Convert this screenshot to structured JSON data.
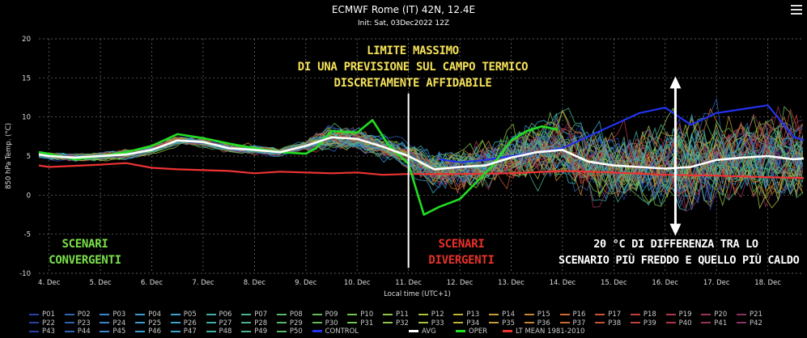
{
  "header": {
    "title": "ECMWF Rome (IT) 42N, 12.4E",
    "subtitle": "Init: Sat, 03Dec2022 12Z"
  },
  "annotations": {
    "limit": [
      "LIMITE MASSIMO",
      "DI UNA PREVISIONE SUL CAMPO TERMICO",
      "DISCRETAMENTE AFFIDABILE"
    ],
    "convergent": [
      "SCENARI",
      "CONVERGENTI"
    ],
    "divergent": [
      "SCENARI",
      "DIVERGENTI"
    ],
    "range": [
      "20 °C DI DIFFERENZA TRA LO",
      "SCENARIO PIÙ FREDDO E QUELLO PIÙ CALDO"
    ]
  },
  "colors": {
    "background": "#000000",
    "avg": "#ffffff",
    "oper": "#22dd22",
    "control": "#2233ee",
    "lt_mean": "#ee3333",
    "limit_text": "#f5e15a",
    "convergent_text": "#7be04a",
    "divergent_text": "#e8312a"
  },
  "chart_data": {
    "type": "line",
    "ylabel": "850 hPa Temp. (°C)",
    "xlabel": "Local time (UTC+1)",
    "ylim": [
      -10,
      20
    ],
    "yticks": [
      -10,
      -5,
      0,
      5,
      10,
      15,
      20
    ],
    "xlim": [
      3.8,
      18.7
    ],
    "categories": [
      "4. Dec",
      "5. Dec",
      "6. Dec",
      "7. Dec",
      "8. Dec",
      "9. Dec",
      "10. Dec",
      "11. Dec",
      "12. Dec",
      "13. Dec",
      "14. Dec",
      "15. Dec",
      "16. Dec",
      "17. Dec",
      "18. Dec"
    ],
    "tick_x": [
      4,
      5,
      6,
      7,
      8,
      9,
      10,
      11,
      12,
      13,
      14,
      15,
      16,
      17,
      18
    ],
    "grid": true,
    "limit_marker_x": 11,
    "range_arrow": {
      "x": 16.2,
      "from": -5,
      "to": 15
    },
    "series": [
      {
        "name": "AVG",
        "x": [
          3.8,
          4,
          4.5,
          5,
          5.5,
          6,
          6.5,
          7,
          7.5,
          8,
          8.5,
          9,
          9.5,
          10,
          10.5,
          11,
          11.5,
          12,
          12.5,
          13,
          13.5,
          14,
          14.5,
          15,
          15.5,
          16,
          16.5,
          17,
          17.5,
          18,
          18.5,
          18.7
        ],
        "values": [
          5.2,
          5.0,
          4.8,
          5.0,
          5.2,
          5.8,
          7.0,
          6.8,
          6.0,
          5.8,
          5.5,
          6.3,
          7.4,
          7.2,
          6.2,
          5.0,
          3.3,
          3.6,
          3.8,
          4.8,
          5.5,
          5.8,
          4.3,
          3.8,
          3.6,
          3.4,
          3.6,
          4.5,
          4.8,
          5.0,
          4.6,
          4.7
        ]
      },
      {
        "name": "OPER",
        "x": [
          3.8,
          4,
          4.5,
          5,
          5.5,
          6,
          6.5,
          7,
          7.5,
          8,
          8.5,
          9,
          9.2,
          9.5,
          10,
          10.3,
          10.6,
          11,
          11.3,
          11.6,
          12,
          12.3,
          12.6,
          13,
          13.3,
          13.6,
          13.9
        ],
        "values": [
          5.5,
          5.3,
          4.6,
          5.0,
          5.5,
          6.3,
          7.8,
          7.3,
          6.6,
          6.0,
          5.5,
          5.3,
          6.0,
          8.2,
          8.0,
          9.6,
          6.5,
          4.0,
          -2.5,
          -1.5,
          -0.5,
          1.5,
          3.5,
          7.0,
          8.2,
          8.8,
          8.4
        ]
      },
      {
        "name": "CONTROL",
        "x": [
          11.6,
          12,
          12.5,
          13,
          13.5,
          14,
          14.5,
          15,
          15.5,
          16,
          16.5,
          17,
          17.5,
          18,
          18.5,
          18.7
        ],
        "values": [
          4.6,
          4.2,
          4.5,
          5.0,
          5.5,
          6.0,
          7.5,
          9.0,
          10.5,
          11.2,
          9.0,
          10.5,
          11.0,
          11.5,
          7.5,
          7.0
        ]
      },
      {
        "name": "LT MEAN 1981-2010",
        "x": [
          3.8,
          4,
          5,
          5.5,
          6,
          6.5,
          7,
          7.5,
          8,
          8.5,
          9,
          9.5,
          10,
          10.5,
          11,
          11.5,
          12,
          13,
          14,
          15,
          16,
          17,
          18,
          18.7
        ],
        "values": [
          3.8,
          3.6,
          3.9,
          4.1,
          3.5,
          3.3,
          3.2,
          3.1,
          2.8,
          3.0,
          2.9,
          2.8,
          2.9,
          2.6,
          2.7,
          2.7,
          2.7,
          2.8,
          3.1,
          2.9,
          2.6,
          2.5,
          2.3,
          2.2
        ]
      }
    ],
    "legend": [
      "P01",
      "P02",
      "P03",
      "P04",
      "P05",
      "P06",
      "P07",
      "P08",
      "P09",
      "P10",
      "P11",
      "P12",
      "P13",
      "P14",
      "P15",
      "P16",
      "P17",
      "P18",
      "P19",
      "P20",
      "P21",
      "P22",
      "P23",
      "P24",
      "P25",
      "P26",
      "P27",
      "P28",
      "P29",
      "P30",
      "P31",
      "P32",
      "P33",
      "P34",
      "P35",
      "P36",
      "P37",
      "P38",
      "P39",
      "P40",
      "P41",
      "P42",
      "P43",
      "P44",
      "P45",
      "P46",
      "P47",
      "P48",
      "P49",
      "P50",
      "CONTROL",
      "AVG",
      "OPER",
      "LT MEAN 1981-2010"
    ],
    "legend_colors": [
      "#2b3fa6",
      "#2f63b5",
      "#3b86c8",
      "#3e9bd0",
      "#3aa6c9",
      "#3fb0a8",
      "#49b38a",
      "#57b86c",
      "#63bc53",
      "#76c24a",
      "#8fc444",
      "#a7c23f",
      "#b9b23b",
      "#c49c36",
      "#c98433",
      "#cb6c33",
      "#c95336",
      "#c1413d",
      "#b23548",
      "#9c3256",
      "#8a3164",
      "#2b3fa6",
      "#2f63b5",
      "#3b86c8",
      "#3e9bd0",
      "#3aa6c9",
      "#3fb0a8",
      "#49b38a",
      "#57b86c",
      "#63bc53",
      "#76c24a",
      "#8fc444",
      "#a7c23f",
      "#b9b23b",
      "#c49c36",
      "#c98433",
      "#cb6c33",
      "#c95336",
      "#c1413d",
      "#b23548",
      "#9c3256",
      "#8a3164",
      "#2b3fa6",
      "#2f63b5",
      "#3b86c8",
      "#3e9bd0",
      "#3aa6c9",
      "#3fb0a8",
      "#49b38a",
      "#57b86c",
      "#2233ee",
      "#ffffff",
      "#22dd22",
      "#ee3333"
    ]
  }
}
